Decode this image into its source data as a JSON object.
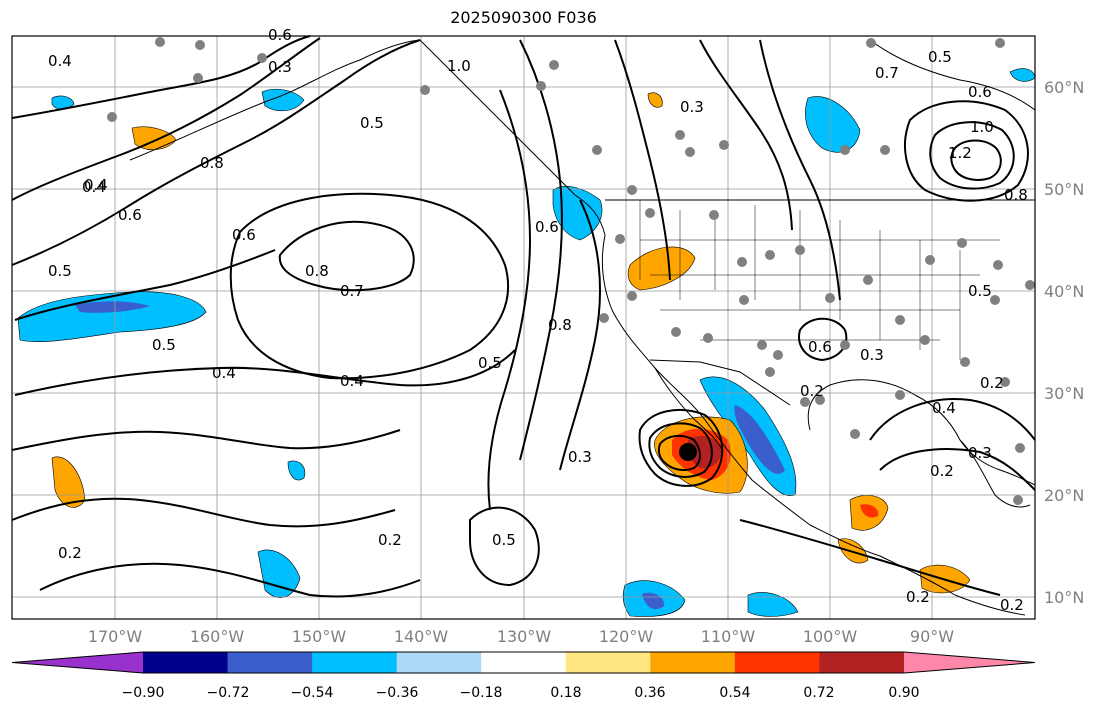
{
  "title": "2025090300 F036",
  "lat_labels": [
    "60°N",
    "50°N",
    "40°N",
    "30°N",
    "20°N",
    "10°N"
  ],
  "lon_labels": [
    "170°W",
    "160°W",
    "150°W",
    "140°W",
    "130°W",
    "120°W",
    "110°W",
    "100°W",
    "90°W"
  ],
  "colorbar": {
    "ticks": [
      "−0.90",
      "−0.72",
      "−0.54",
      "−0.36",
      "−0.18",
      "0.18",
      "0.36",
      "0.54",
      "0.72",
      "0.90"
    ],
    "colors": [
      "#9932CC",
      "#00008B",
      "#3A5FCD",
      "#00BFFF",
      "#ADD8F6",
      "#FFFFFF",
      "#FFE680",
      "#FFA500",
      "#FF3300",
      "#B22222",
      "#FF88AA"
    ]
  },
  "contour_labels": [
    "0.4",
    "0.3",
    "0.4",
    "1.0",
    "0.8",
    "0.3",
    "0.5",
    "0.7",
    "0.6",
    "1.0",
    "1.2",
    "0.8",
    "0.5",
    "0.6",
    "0.4",
    "0.6",
    "0.5",
    "0.6",
    "0.8",
    "0.7",
    "0.6",
    "0.5",
    "0.4",
    "0.5",
    "0.4",
    "0.5",
    "0.8",
    "0.3",
    "0.6",
    "0.3",
    "0.2",
    "0.4",
    "0.3",
    "0.2",
    "0.2",
    "0.2",
    "0.5",
    "0.2",
    "0.2",
    "0.2"
  ]
}
